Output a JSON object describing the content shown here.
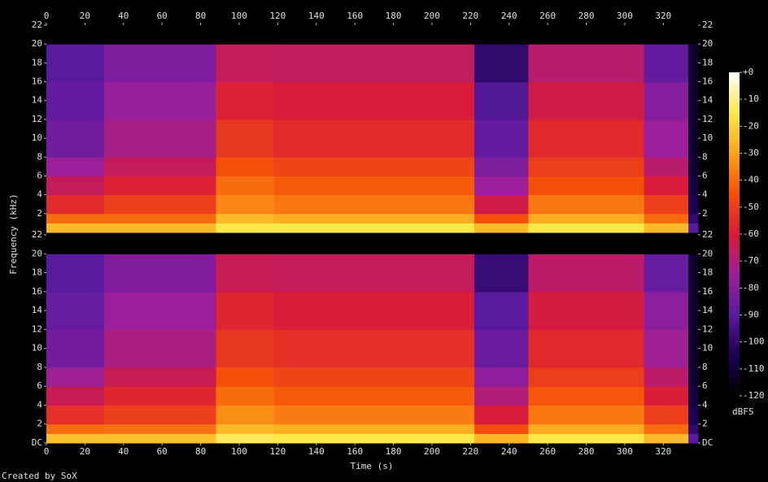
{
  "chart_data": {
    "type": "spectrogram",
    "xlabel": "Time (s)",
    "ylabel": "Frequency (kHz)",
    "footer": "Created by SoX",
    "xlim": [
      0,
      338
    ],
    "xticks": [
      0,
      20,
      40,
      60,
      80,
      100,
      120,
      140,
      160,
      180,
      200,
      220,
      240,
      260,
      280,
      300,
      320
    ],
    "bins": [
      0,
      30,
      88,
      118,
      222,
      250,
      310,
      333,
      338
    ],
    "freq_bins": [
      0,
      1,
      2,
      4,
      6,
      8,
      12,
      16,
      20,
      22
    ],
    "channels": [
      {
        "ylim": [
          0,
          22
        ],
        "yticks": [
          2,
          4,
          6,
          8,
          10,
          12,
          14,
          16,
          18,
          20,
          22
        ],
        "values": [
          [
            -25,
            -40,
            -55,
            -65,
            -75,
            -85,
            -88,
            -90,
            -120
          ],
          [
            -25,
            -40,
            -50,
            -58,
            -65,
            -72,
            -76,
            -82,
            -120
          ],
          [
            -15,
            -25,
            -35,
            -40,
            -45,
            -52,
            -58,
            -65,
            -120
          ],
          [
            -15,
            -28,
            -38,
            -43,
            -48,
            -55,
            -60,
            -66,
            -120
          ],
          [
            -25,
            -45,
            -62,
            -75,
            -82,
            -88,
            -92,
            -100,
            -120
          ],
          [
            -15,
            -28,
            -38,
            -45,
            -50,
            -56,
            -62,
            -68,
            -120
          ],
          [
            -25,
            -40,
            -50,
            -60,
            -68,
            -75,
            -80,
            -88,
            -120
          ],
          [
            -90,
            -100,
            -105,
            -108,
            -110,
            -112,
            -112,
            -112,
            -120
          ]
        ]
      },
      {
        "ylim": [
          0,
          22
        ],
        "yticks": [
          {
            "value": 0,
            "label": "DC"
          },
          2,
          4,
          6,
          8,
          10,
          12,
          14,
          16,
          18,
          20,
          22
        ],
        "values": [
          [
            -24,
            -40,
            -54,
            -64,
            -74,
            -84,
            -87,
            -90,
            -120
          ],
          [
            -24,
            -39,
            -50,
            -57,
            -64,
            -71,
            -75,
            -81,
            -120
          ],
          [
            -14,
            -25,
            -34,
            -40,
            -45,
            -52,
            -57,
            -64,
            -120
          ],
          [
            -15,
            -27,
            -37,
            -43,
            -48,
            -54,
            -59,
            -65,
            -120
          ],
          [
            -26,
            -46,
            -60,
            -70,
            -78,
            -86,
            -90,
            -98,
            -120
          ],
          [
            -15,
            -28,
            -38,
            -44,
            -50,
            -56,
            -61,
            -67,
            -120
          ],
          [
            -25,
            -40,
            -50,
            -59,
            -67,
            -74,
            -79,
            -87,
            -120
          ],
          [
            -90,
            -100,
            -105,
            -108,
            -110,
            -112,
            -112,
            -112,
            -120
          ]
        ]
      }
    ],
    "colorbar": {
      "label": "dBFS",
      "lim": [
        -120,
        0
      ],
      "ticks": [
        {
          "value": 0,
          "label": "+0"
        },
        -10,
        -20,
        -30,
        -40,
        -50,
        -60,
        -70,
        -80,
        -90,
        -100,
        -110,
        -120
      ],
      "colors": [
        "#000000",
        "#1a0050",
        "#5a1aa0",
        "#9b1f9a",
        "#d91a3a",
        "#f5500a",
        "#fca31a",
        "#fde84a",
        "#ffffff"
      ]
    }
  }
}
